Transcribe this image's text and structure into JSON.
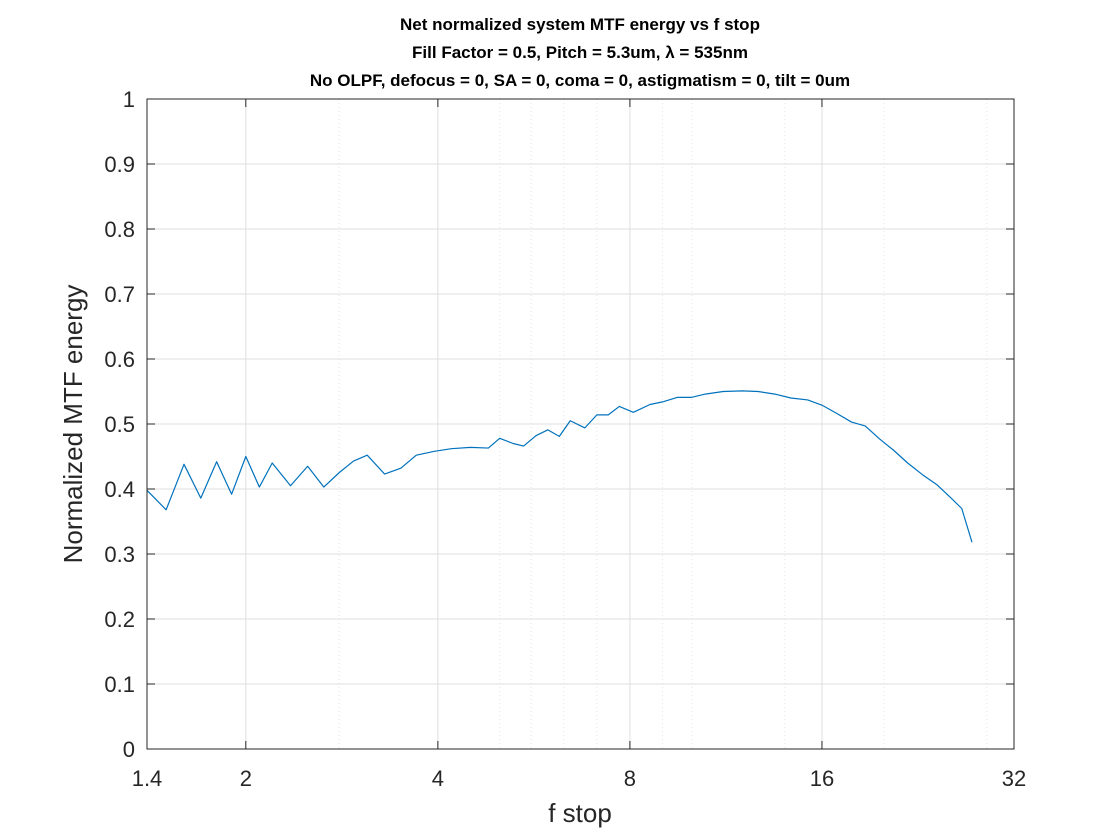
{
  "chart_data": {
    "type": "line",
    "title_lines": [
      "Net normalized system MTF energy vs f stop",
      "Fill Factor = 0.5, Pitch = 5.3um, λ = 535nm",
      "No OLPF, defocus = 0, SA = 0, coma = 0, astigmatism = 0, tilt = 0um"
    ],
    "xlabel": "f stop",
    "ylabel": "Normalized MTF energy",
    "x_scale": "log2",
    "xlim": [
      1.4,
      32
    ],
    "ylim": [
      0,
      1
    ],
    "x_ticks": [
      1.4,
      2,
      4,
      8,
      16,
      32
    ],
    "x_tick_labels": [
      "1.4",
      "2",
      "4",
      "8",
      "16",
      "32"
    ],
    "y_ticks": [
      0,
      0.1,
      0.2,
      0.3,
      0.4,
      0.5,
      0.6,
      0.7,
      0.8,
      0.9,
      1
    ],
    "y_tick_labels": [
      "0",
      "0.1",
      "0.2",
      "0.3",
      "0.4",
      "0.5",
      "0.6",
      "0.7",
      "0.8",
      "0.9",
      "1"
    ],
    "grid": true,
    "minor_x_ticks": [
      2.8,
      5.0,
      5.6,
      6.3,
      7.1,
      9.0,
      10.0,
      14.0,
      20.0,
      29.0
    ],
    "line_color": "#0072bd",
    "series": [
      {
        "x": [
          1.4,
          1.5,
          1.6,
          1.7,
          1.8,
          1.9,
          2.0,
          2.1,
          2.2,
          2.35,
          2.5,
          2.65,
          2.8,
          2.95,
          3.1,
          3.3,
          3.5,
          3.7,
          3.95,
          4.2,
          4.5,
          4.8,
          5.0,
          5.25,
          5.45,
          5.7,
          5.95,
          6.2,
          6.45,
          6.8,
          7.1,
          7.4,
          7.7,
          8.1,
          8.6,
          9.0,
          9.5,
          10.0,
          10.5,
          11.2,
          12.0,
          12.7,
          13.5,
          14.3,
          15.2,
          16.0,
          16.9,
          17.8,
          18.7,
          19.7,
          20.7,
          21.8,
          23.0,
          24.2,
          25.5,
          26.5,
          27.5
        ],
        "y": [
          0.398,
          0.368,
          0.438,
          0.386,
          0.442,
          0.392,
          0.45,
          0.403,
          0.44,
          0.405,
          0.435,
          0.403,
          0.425,
          0.443,
          0.452,
          0.423,
          0.432,
          0.452,
          0.458,
          0.462,
          0.464,
          0.463,
          0.478,
          0.47,
          0.466,
          0.482,
          0.491,
          0.481,
          0.505,
          0.494,
          0.514,
          0.514,
          0.527,
          0.518,
          0.53,
          0.534,
          0.541,
          0.541,
          0.546,
          0.55,
          0.551,
          0.55,
          0.546,
          0.54,
          0.537,
          0.529,
          0.516,
          0.503,
          0.497,
          0.477,
          0.46,
          0.44,
          0.422,
          0.407,
          0.386,
          0.37,
          0.318
        ]
      }
    ]
  }
}
